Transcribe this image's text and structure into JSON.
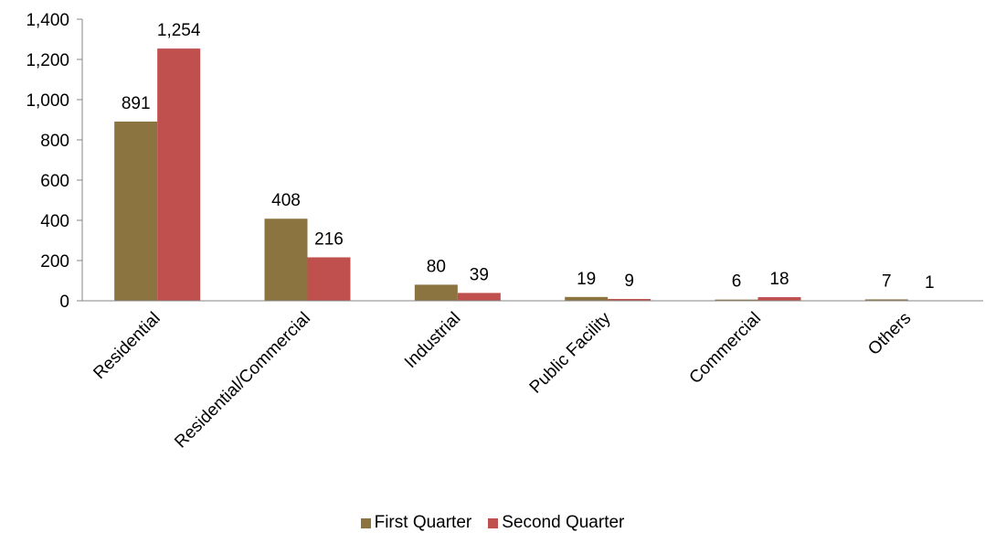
{
  "chart_data": {
    "type": "bar",
    "categories": [
      "Residential",
      "Residential/Commercial",
      "Industrial",
      "Public Facility",
      "Commercial",
      "Others"
    ],
    "series": [
      {
        "name": "First Quarter",
        "values": [
          891,
          408,
          80,
          19,
          6,
          7
        ],
        "labels": [
          "891",
          "408",
          "80",
          "19",
          "6",
          "7"
        ],
        "color": "#8c7440"
      },
      {
        "name": "Second Quarter",
        "values": [
          1254,
          216,
          39,
          9,
          18,
          1
        ],
        "labels": [
          "1,254",
          "216",
          "39",
          "9",
          "18",
          "1"
        ],
        "color": "#c0504d"
      }
    ],
    "ylim": [
      0,
      1400
    ],
    "yticks": [
      0,
      200,
      400,
      600,
      800,
      1000,
      1200,
      1400
    ],
    "ytick_labels": [
      "0",
      "200",
      "400",
      "600",
      "800",
      "1,000",
      "1,200",
      "1,400"
    ],
    "title": "",
    "xlabel": "",
    "ylabel": "",
    "grid": false,
    "legend_position": "bottom"
  }
}
